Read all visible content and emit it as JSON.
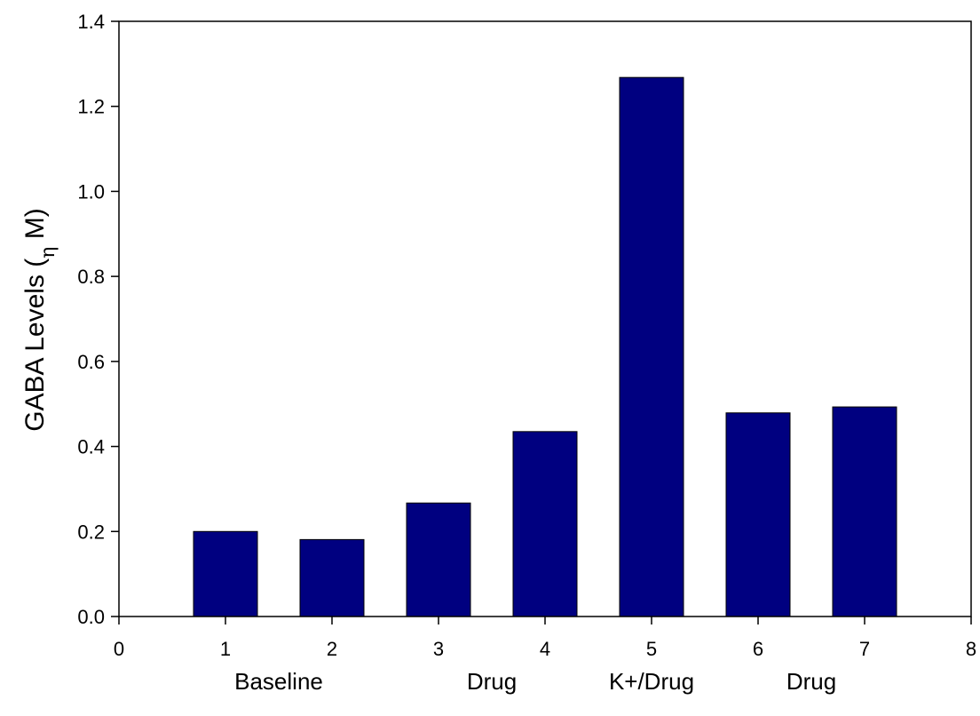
{
  "chart_data": {
    "type": "bar",
    "x": [
      1,
      2,
      3,
      4,
      5,
      6,
      7
    ],
    "values": [
      0.2,
      0.181,
      0.267,
      0.435,
      1.268,
      0.479,
      0.493
    ],
    "xlim": [
      0,
      8
    ],
    "ylim": [
      0,
      1.4
    ],
    "x_ticks": [
      "0",
      "1",
      "2",
      "3",
      "4",
      "5",
      "6",
      "7",
      "8"
    ],
    "y_ticks": [
      "0.0",
      "0.2",
      "0.4",
      "0.6",
      "0.8",
      "1.0",
      "1.2",
      "1.4"
    ],
    "ylabel": "GABA Levels (",
    "ylabel_symbol": "η",
    "ylabel_suffix": " M)",
    "xlabel": "",
    "title": "",
    "group_labels": [
      {
        "text": "Baseline",
        "x": 1.5
      },
      {
        "text": "Drug",
        "x": 3.5
      },
      {
        "text": "K+/Drug",
        "x": 5
      },
      {
        "text": "Drug",
        "x": 6.5
      }
    ],
    "bar_color": "#000080",
    "grid": false,
    "legend": "none"
  }
}
